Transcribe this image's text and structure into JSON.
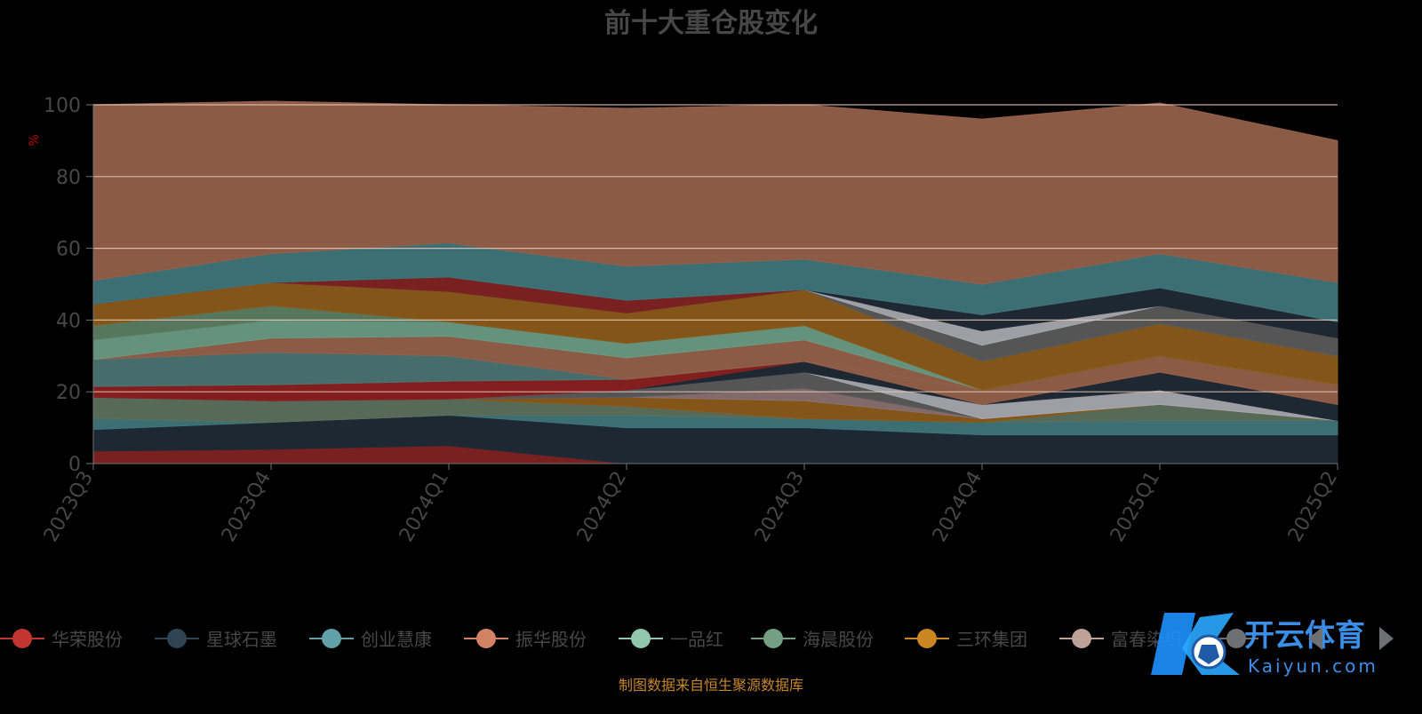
{
  "chart_data": {
    "type": "area",
    "stacked": true,
    "title": "前十大重仓股变化",
    "ylabel": "%",
    "ylim": [
      0,
      100
    ],
    "y_ticks": [
      0,
      20,
      40,
      60,
      80,
      100
    ],
    "categories": [
      "2023Q3",
      "2023Q4",
      "2024Q1",
      "2024Q2",
      "2024Q3",
      "2024Q4",
      "2025Q1",
      "2025Q2"
    ],
    "grid": true,
    "legend_position": "bottom",
    "series": [
      {
        "name": "",
        "color": "#7f2222",
        "values": [
          3.5,
          4.0,
          5.0,
          0.0,
          0.0,
          0.0,
          0.0,
          0.0
        ]
      },
      {
        "name": "",
        "color": "#1f2a36",
        "values": [
          6.0,
          7.5,
          8.5,
          10.0,
          10.0,
          8.0,
          8.0,
          8.0
        ]
      },
      {
        "name": "",
        "color": "#3f757a",
        "values": [
          3.0,
          0.0,
          0.0,
          3.5,
          2.5,
          3.5,
          4.0,
          4.0
        ]
      },
      {
        "name": "",
        "color": "#5c6f5c",
        "values": [
          6.0,
          6.0,
          4.5,
          2.5,
          0.0,
          0.0,
          4.5,
          0.0
        ]
      },
      {
        "name": "",
        "color": "#8a5a1a",
        "values": [
          0.0,
          0.0,
          0.0,
          2.5,
          5.0,
          1.0,
          0.0,
          0.0
        ]
      },
      {
        "name": "",
        "color": "#8a7070",
        "values": [
          0.0,
          0.0,
          0.0,
          0.0,
          3.5,
          0.0,
          0.0,
          0.0
        ]
      },
      {
        "name": "",
        "color": "#5a5a5a",
        "values": [
          0.0,
          0.0,
          0.0,
          2.0,
          4.5,
          0.0,
          0.0,
          0.0
        ]
      },
      {
        "name": "",
        "color": "#a6a8ad",
        "values": [
          0.0,
          0.0,
          0.0,
          0.0,
          0.0,
          4.0,
          4.0,
          0.0
        ]
      },
      {
        "name": "",
        "color": "#1f2a36",
        "values": [
          0.0,
          0.0,
          0.0,
          0.0,
          3.0,
          0.0,
          5.0,
          4.5
        ]
      },
      {
        "name": "",
        "color": "#8a2020",
        "values": [
          3.0,
          4.5,
          5.0,
          3.0,
          0.0,
          0.0,
          0.0,
          0.0
        ]
      },
      {
        "name": "",
        "color": "#93604a",
        "values": [
          0.0,
          0.0,
          0.0,
          0.0,
          0.0,
          4.0,
          4.5,
          5.5
        ]
      },
      {
        "name": "",
        "color": "#4a7372",
        "values": [
          7.5,
          9.0,
          7.0,
          0.0,
          0.0,
          0.0,
          0.0,
          0.0
        ]
      },
      {
        "name": "",
        "color": "#93604a",
        "values": [
          0.0,
          4.0,
          5.5,
          6.0,
          6.0,
          0.0,
          0.0,
          0.0
        ]
      },
      {
        "name": "",
        "color": "#6a9a83",
        "values": [
          5.5,
          5.0,
          4.0,
          4.0,
          4.0,
          0.0,
          0.0,
          0.0
        ]
      },
      {
        "name": "",
        "color": "#5c7d62",
        "values": [
          4.0,
          4.0,
          0.0,
          0.0,
          0.0,
          0.0,
          0.0,
          0.0
        ]
      },
      {
        "name": "",
        "color": "#8a5a1a",
        "values": [
          6.0,
          6.5,
          8.5,
          8.5,
          10.0,
          8.0,
          9.0,
          8.0
        ]
      },
      {
        "name": "",
        "color": "#5a5a5a",
        "values": [
          0.0,
          0.0,
          0.0,
          0.0,
          0.0,
          4.5,
          5.0,
          5.0
        ]
      },
      {
        "name": "",
        "color": "#a6a8ad",
        "values": [
          0.0,
          0.0,
          0.0,
          0.0,
          0.0,
          4.0,
          0.0,
          0.0
        ]
      },
      {
        "name": "",
        "color": "#1f2a36",
        "values": [
          0.0,
          0.0,
          0.0,
          0.0,
          0.0,
          4.5,
          5.0,
          4.5
        ]
      },
      {
        "name": "",
        "color": "#7f2222",
        "values": [
          0.0,
          0.0,
          4.0,
          3.5,
          0.0,
          0.0,
          0.0,
          0.0
        ]
      },
      {
        "name": "",
        "color": "#3f757a",
        "values": [
          6.5,
          8.0,
          9.5,
          9.5,
          8.5,
          8.5,
          9.5,
          11.0
        ]
      },
      {
        "name": "",
        "color": "#93604a",
        "values": [
          49.0,
          42.5,
          38.5,
          44.0,
          43.0,
          46.0,
          42.0,
          39.5
        ]
      }
    ],
    "legend": [
      {
        "label": "华荣股份",
        "color": "#c23531"
      },
      {
        "label": "星球石墨",
        "color": "#2f4554"
      },
      {
        "label": "创业慧康",
        "color": "#61a0a8"
      },
      {
        "label": "振华股份",
        "color": "#d48265"
      },
      {
        "label": "一品红",
        "color": "#91c7ae"
      },
      {
        "label": "海晨股份",
        "color": "#749f83"
      },
      {
        "label": "三环集团",
        "color": "#ca8622"
      },
      {
        "label": "富春染织",
        "color": "#bda29a"
      },
      {
        "label": "",
        "color": "#6e7074"
      }
    ],
    "source_note": "制图数据来自恒生聚源数据库",
    "watermark": "开云体育 Kaiyun.com"
  }
}
